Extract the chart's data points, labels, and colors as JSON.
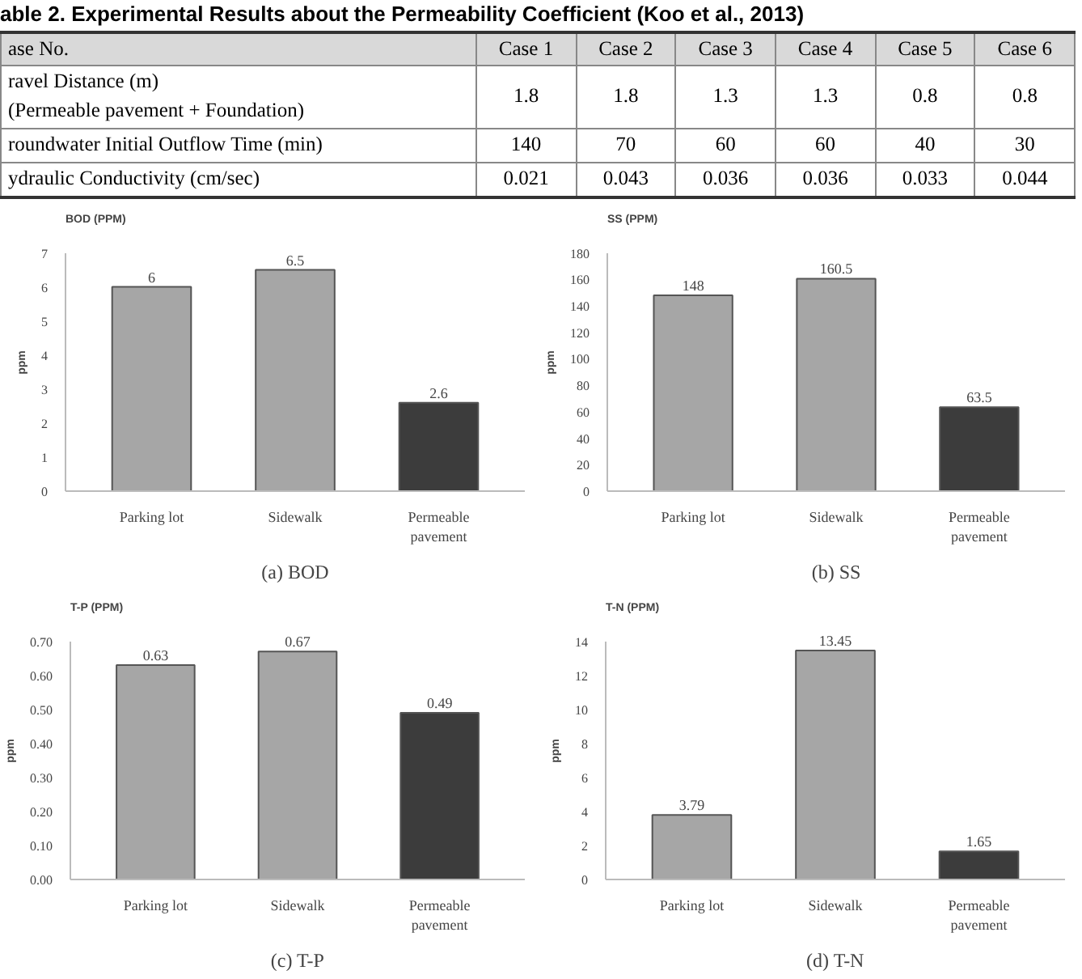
{
  "chart_data": [
    {
      "type": "other",
      "title": "able 2. Experimental Results about the Permeability Coefficient (Koo et al., 2013)",
      "categories": [
        "ase No.",
        "Case 1",
        "Case 2",
        "Case 3",
        "Case 4",
        "Case 5",
        "Case 6"
      ],
      "annotations": [
        "ravel Distance (m)\n(Permeable pavement + Foundation)",
        "1.8",
        "1.8",
        "1.3",
        "1.3",
        "0.8",
        "0.8",
        "roundwater Initial Outflow Time (min)",
        "140",
        "70",
        "60",
        "60",
        "40",
        "30",
        "ydraulic Conductivity (cm/sec)",
        "0.021",
        "0.043",
        "0.036",
        "0.036",
        "0.033",
        "0.044"
      ]
    },
    {
      "type": "bar",
      "title": "BOD (PPM)",
      "ylabel": "ppm",
      "categories": [
        "Parking lot",
        "Sidewalk",
        "Permeable\npavement"
      ],
      "values": [
        6,
        6.5,
        2.6
      ],
      "colors": [
        "#a6a6a6",
        "#a6a6a6",
        "#3c3c3c"
      ],
      "data_labels": true,
      "ylim": [
        0,
        7
      ],
      "yticks": [
        0,
        1,
        2,
        3,
        4,
        5,
        6,
        7
      ],
      "annotations": [
        "(a) BOD"
      ]
    },
    {
      "type": "bar",
      "title": "SS (PPM)",
      "ylabel": "ppm",
      "categories": [
        "Parking lot",
        "Sidewalk",
        "Permeable\npavement"
      ],
      "values": [
        148,
        160.5,
        63.5
      ],
      "colors": [
        "#a6a6a6",
        "#a6a6a6",
        "#3c3c3c"
      ],
      "data_labels": true,
      "ylim": [
        0,
        180
      ],
      "yticks": [
        0,
        20,
        40,
        60,
        80,
        100,
        120,
        140,
        160,
        180
      ],
      "annotations": [
        "(b) SS"
      ]
    },
    {
      "type": "bar",
      "title": "T-P (PPM)",
      "ylabel": "ppm",
      "categories": [
        "Parking lot",
        "Sidewalk",
        "Permeable\npavement"
      ],
      "values": [
        0.63,
        0.67,
        0.49
      ],
      "colors": [
        "#a6a6a6",
        "#a6a6a6",
        "#3c3c3c"
      ],
      "data_labels": true,
      "ylim": [
        0,
        0.7
      ],
      "yticks": [
        {
          "value": 0,
          "label": "0.00"
        },
        {
          "value": 0.1,
          "label": "0.10"
        },
        {
          "value": 0.2,
          "label": "0.20"
        },
        {
          "value": 0.3,
          "label": "0.30"
        },
        {
          "value": 0.4,
          "label": "0.40"
        },
        {
          "value": 0.5,
          "label": "0.50"
        },
        {
          "value": 0.6,
          "label": "0.60"
        },
        {
          "value": 0.7,
          "label": "0.70"
        }
      ],
      "annotations": [
        "(c) T-P"
      ]
    },
    {
      "type": "bar",
      "title": "T-N (PPM)",
      "ylabel": "ppm",
      "categories": [
        "Parking lot",
        "Sidewalk",
        "Permeable\npavement"
      ],
      "values": [
        3.79,
        13.45,
        1.65
      ],
      "colors": [
        "#a6a6a6",
        "#a6a6a6",
        "#3c3c3c"
      ],
      "data_labels": true,
      "ylim": [
        0,
        14
      ],
      "yticks": [
        0,
        2,
        4,
        6,
        8,
        10,
        12,
        14
      ],
      "annotations": [
        "(d) T-N"
      ]
    }
  ]
}
